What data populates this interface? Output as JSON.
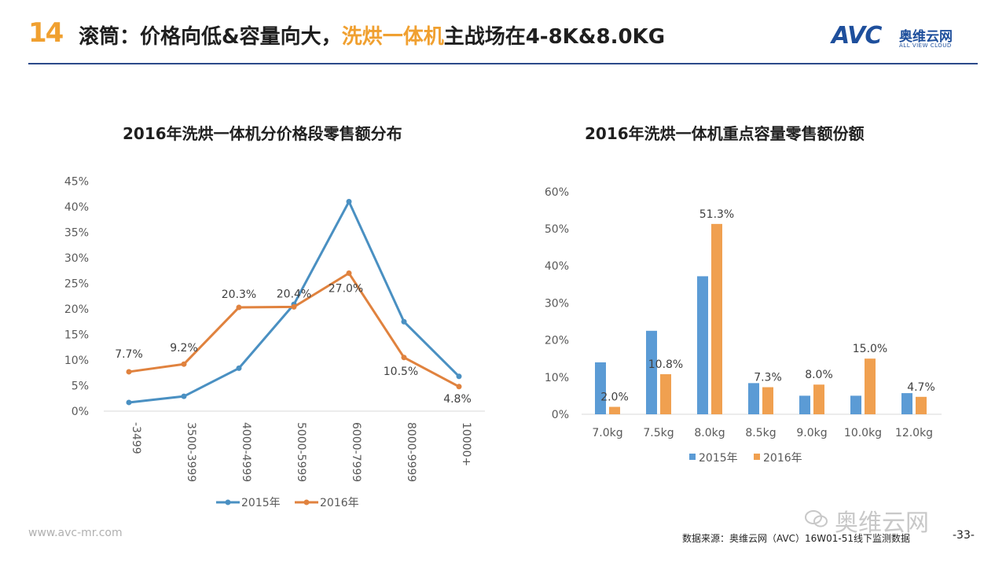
{
  "header": {
    "page_badge": "14",
    "title_part1": "滚筒：价格向低&容量向大，",
    "title_highlight": "洗烘一体机",
    "title_part2": "主战场在4-8K&8.0KG",
    "logo_mark": "AVC",
    "logo_cn": "奥维云网",
    "logo_en": "ALL VIEW CLOUD"
  },
  "colors": {
    "accent": "#f0a030",
    "brand": "#1e4f9c",
    "series_2015_line": "#4a90c2",
    "series_2016_line": "#e0823e",
    "series_2015_bar": "#5b9bd5",
    "series_2016_bar": "#f0a050"
  },
  "chart_data": [
    {
      "type": "line",
      "title": "2016年洗烘一体机分价格段零售额分布",
      "categories": [
        "-3499",
        "3500-3999",
        "4000-4999",
        "5000-5999",
        "6000-7999",
        "8000-9999",
        "10000+"
      ],
      "series": [
        {
          "name": "2015年",
          "values": [
            1.7,
            2.9,
            8.4,
            20.9,
            41.0,
            17.5,
            6.8
          ]
        },
        {
          "name": "2016年",
          "values": [
            7.7,
            9.2,
            20.3,
            20.4,
            27.0,
            10.5,
            4.8
          ],
          "labels": [
            "7.7%",
            "9.2%",
            "20.3%",
            "20.4%",
            "27.0%",
            "10.5%",
            "4.8%"
          ]
        }
      ],
      "ylim": [
        0,
        45
      ],
      "yticks": [
        "0%",
        "5%",
        "10%",
        "15%",
        "20%",
        "25%",
        "30%",
        "35%",
        "40%",
        "45%"
      ],
      "legend_position": "bottom"
    },
    {
      "type": "bar",
      "title": "2016年洗烘一体机重点容量零售额份额",
      "categories": [
        "7.0kg",
        "7.5kg",
        "8.0kg",
        "8.5kg",
        "9.0kg",
        "10.0kg",
        "12.0kg"
      ],
      "series": [
        {
          "name": "2015年",
          "values": [
            14.0,
            22.5,
            37.2,
            8.4,
            5.0,
            5.0,
            5.7
          ]
        },
        {
          "name": "2016年",
          "values": [
            2.0,
            10.8,
            51.3,
            7.3,
            8.0,
            15.0,
            4.7
          ],
          "labels": [
            "2.0%",
            "10.8%",
            "51.3%",
            "7.3%",
            "8.0%",
            "15.0%",
            "4.7%"
          ]
        }
      ],
      "ylim": [
        0,
        60
      ],
      "yticks": [
        "0%",
        "10%",
        "20%",
        "30%",
        "40%",
        "50%",
        "60%"
      ],
      "legend_position": "bottom"
    }
  ],
  "footer": {
    "url": "www.avc-mr.com",
    "source": "数据来源：奥维云网（AVC）16W01-51线下监测数据",
    "page": "-33-",
    "watermark": "奥维云网"
  }
}
